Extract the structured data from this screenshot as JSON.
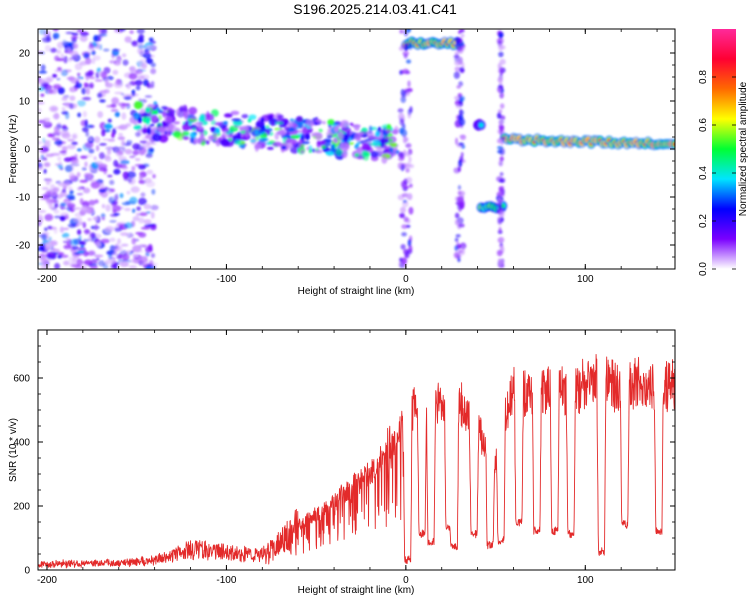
{
  "title": "S196.2025.214.03.41.C41",
  "colors": {
    "snr_line": "#e32a2a",
    "axis": "#000000"
  },
  "chart_data": [
    {
      "type": "heatmap",
      "xlabel": "Height of straight line (km)",
      "ylabel": "Frequency (Hz)",
      "xlim": [
        -205,
        150
      ],
      "ylim": [
        -25,
        25
      ],
      "xticks": [
        -200,
        -100,
        0,
        100
      ],
      "yticks": [
        20,
        10,
        0,
        -10,
        -20
      ],
      "colorbar": {
        "label": "Normalized spectral amplitude",
        "range": [
          0.0,
          1.0
        ],
        "ticks": [
          "0.0",
          "0.2",
          "0.4",
          "0.6",
          "0.8"
        ],
        "stops": [
          "#ffffff",
          "#7a00ff",
          "#0000ff",
          "#00e5ff",
          "#00ff33",
          "#ffff00",
          "#ff6a00",
          "#ff0033",
          "#ff2a9a"
        ]
      },
      "features": [
        {
          "name": "noise",
          "x": [
            -205,
            -150
          ],
          "freq": [
            -25,
            25
          ],
          "amp": 0.3
        },
        {
          "name": "descending-trace",
          "x": [
            -150,
            -5
          ],
          "freq": [
            6,
            1
          ],
          "amp": 0.5
        },
        {
          "name": "upper-band",
          "x": [
            0,
            30
          ],
          "freq": [
            22,
            22
          ],
          "amp": 0.85
        },
        {
          "name": "mid-blob",
          "x": [
            40,
            42
          ],
          "freq": [
            5,
            5
          ],
          "amp": 0.45
        },
        {
          "name": "lower-band",
          "x": [
            42,
            54
          ],
          "freq": [
            -12,
            -12
          ],
          "amp": 0.65
        },
        {
          "name": "right-band",
          "x": [
            55,
            150
          ],
          "freq": [
            2,
            1
          ],
          "amp": 0.9
        }
      ]
    },
    {
      "type": "line",
      "xlabel": "Height of straight line (km)",
      "ylabel": "SNR (10 * v/v)",
      "xlim": [
        -205,
        150
      ],
      "ylim": [
        0,
        750
      ],
      "xticks": [
        -200,
        -100,
        0,
        100
      ],
      "yticks": [
        0,
        200,
        400,
        600
      ],
      "series": [
        {
          "x": [
            -205,
            -180,
            -160,
            -140,
            -130,
            -120,
            -110,
            -100,
            -90,
            -80,
            -70,
            -60,
            -50,
            -40,
            -30,
            -20,
            -15,
            -10,
            -5,
            0,
            5,
            10,
            15,
            20,
            25,
            30,
            35,
            40,
            45,
            50,
            55,
            60,
            70,
            80,
            90,
            100,
            110,
            120,
            130,
            140,
            150
          ],
          "values": [
            20,
            20,
            22,
            30,
            45,
            65,
            60,
            55,
            50,
            50,
            85,
            140,
            170,
            210,
            260,
            310,
            330,
            390,
            420,
            480,
            510,
            560,
            470,
            540,
            510,
            530,
            470,
            430,
            400,
            340,
            470,
            560,
            540,
            570,
            550,
            580,
            600,
            560,
            590,
            570,
            580
          ]
        }
      ],
      "dips": [
        {
          "x": 1,
          "min": 20
        },
        {
          "x": 9,
          "min": 100
        },
        {
          "x": 14,
          "min": 75
        },
        {
          "x": 24,
          "min": 120
        },
        {
          "x": 27,
          "min": 60
        },
        {
          "x": 38,
          "min": 100
        },
        {
          "x": 47,
          "min": 65
        },
        {
          "x": 53,
          "min": 80
        },
        {
          "x": 63,
          "min": 135
        },
        {
          "x": 73,
          "min": 110
        },
        {
          "x": 83,
          "min": 110
        },
        {
          "x": 92,
          "min": 100
        },
        {
          "x": 109,
          "min": 45
        },
        {
          "x": 122,
          "min": 130
        },
        {
          "x": 141,
          "min": 110
        }
      ]
    }
  ]
}
